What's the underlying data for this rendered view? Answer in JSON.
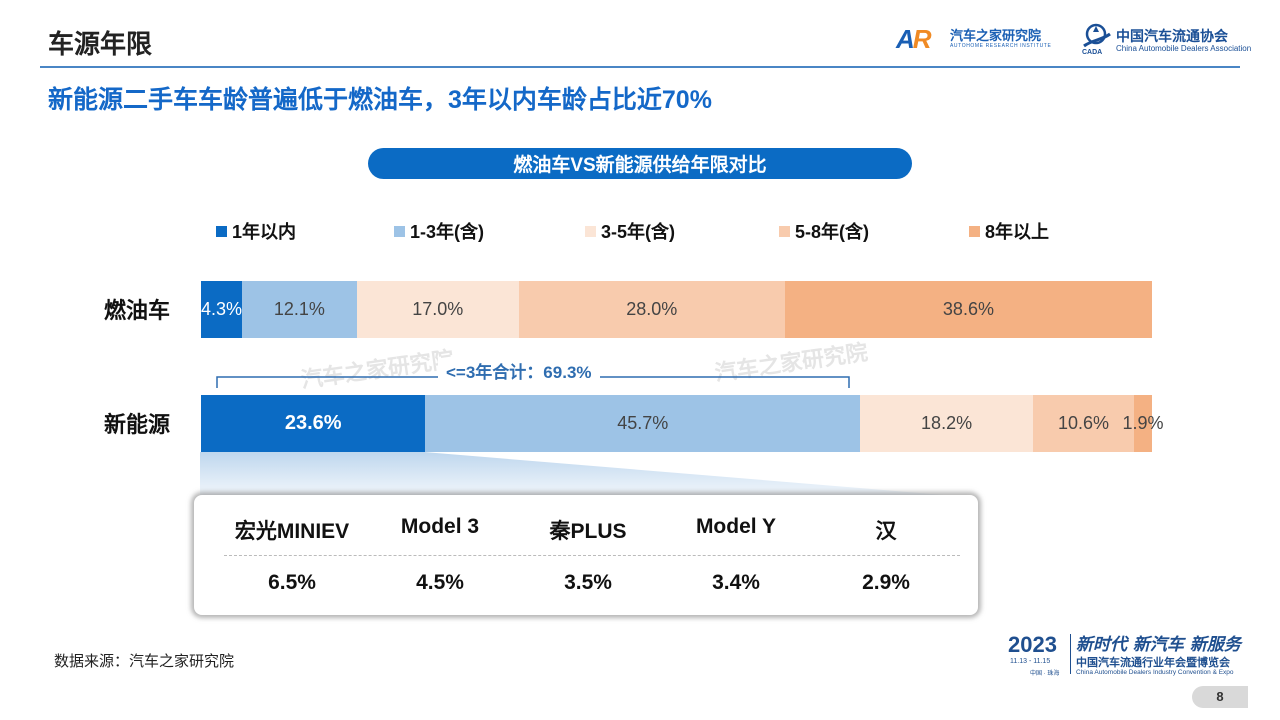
{
  "header": {
    "page_title": "车源年限",
    "logo_ar": {
      "mark": "AR",
      "name": "汽车之家研究院",
      "sub": "AUTOHOME RESEARCH INSTITUTE"
    },
    "logo_cada": {
      "name": "中国汽车流通协会",
      "sub": "China Automobile Dealers Association",
      "mark_text": "CADA"
    }
  },
  "headline": "新能源二手车车龄普遍低于燃油车，3年以内车龄占比近70%",
  "chart_data": {
    "type": "bar",
    "orientation": "horizontal-stacked-100",
    "title": "燃油车VS新能源供给年限对比",
    "categories": [
      "燃油车",
      "新能源"
    ],
    "series": [
      {
        "name": "1年以内",
        "values": [
          4.3,
          23.6
        ],
        "labels": [
          "4.3%",
          "23.6%"
        ],
        "color": "#0b6bc4"
      },
      {
        "name": "1-3年(含)",
        "values": [
          12.1,
          45.7
        ],
        "labels": [
          "12.1%",
          "45.7%"
        ],
        "color": "#9dc3e6"
      },
      {
        "name": "3-5年(含)",
        "values": [
          17.0,
          18.2
        ],
        "labels": [
          "17.0%",
          "18.2%"
        ],
        "color": "#fbe5d6"
      },
      {
        "name": "5-8年(含)",
        "values": [
          28.0,
          10.6
        ],
        "labels": [
          "28.0%",
          "10.6%"
        ],
        "color": "#f8cbad"
      },
      {
        "name": "8年以上",
        "values": [
          38.6,
          1.9
        ],
        "labels": [
          "38.6%",
          "1.9%"
        ],
        "color": "#f4b183"
      }
    ],
    "xlim": [
      0,
      100
    ],
    "legend": "top",
    "annotation": {
      "text": "<=3年合计：69.3%",
      "value": 69.3,
      "category": "新能源"
    }
  },
  "watermarks": [
    "汽车之家研究院",
    "汽车之家研究院"
  ],
  "top_models": [
    {
      "name": "宏光MINIEV",
      "share": "6.5%"
    },
    {
      "name": "Model 3",
      "share": "4.5%"
    },
    {
      "name": "秦PLUS",
      "share": "3.5%"
    },
    {
      "name": "Model Y",
      "share": "3.4%"
    },
    {
      "name": "汉",
      "share": "2.9%"
    }
  ],
  "footer": {
    "source": "数据来源：汽车之家研究院",
    "event": {
      "year": "2023",
      "dates": "11.13 - 11.15",
      "city": "中国 · 珠海",
      "slogan": "新时代 新汽车 新服务",
      "fullname": "中国汽车流通行业年会暨博览会",
      "en": "China Automobile Dealers Industry Convention & Expo"
    },
    "page_number": "8"
  }
}
